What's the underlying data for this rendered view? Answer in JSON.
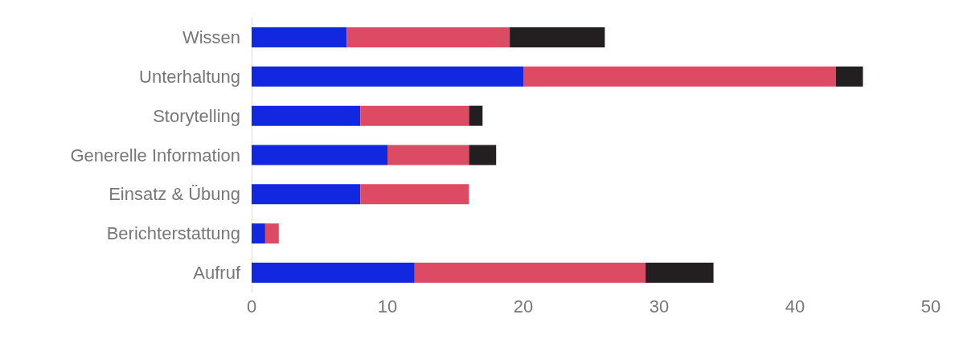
{
  "chart_data": {
    "type": "bar",
    "orientation": "horizontal",
    "stacked": true,
    "categories": [
      "Wissen",
      "Unterhaltung",
      "Storytelling",
      "Generelle Information",
      "Einsatz & Übung",
      "Berichterstattung",
      "Aufruf"
    ],
    "series": [
      {
        "color": "#1228e0",
        "values": [
          7,
          20,
          8,
          10,
          8,
          1,
          12
        ]
      },
      {
        "color": "#dc4a64",
        "values": [
          12,
          23,
          8,
          6,
          8,
          1,
          17
        ]
      },
      {
        "color": "#231f20",
        "values": [
          7,
          2,
          1,
          2,
          0,
          0,
          5
        ]
      }
    ],
    "xlim": [
      0,
      50
    ],
    "xticks": [
      0,
      10,
      20,
      30,
      40,
      50
    ],
    "grid": false
  }
}
